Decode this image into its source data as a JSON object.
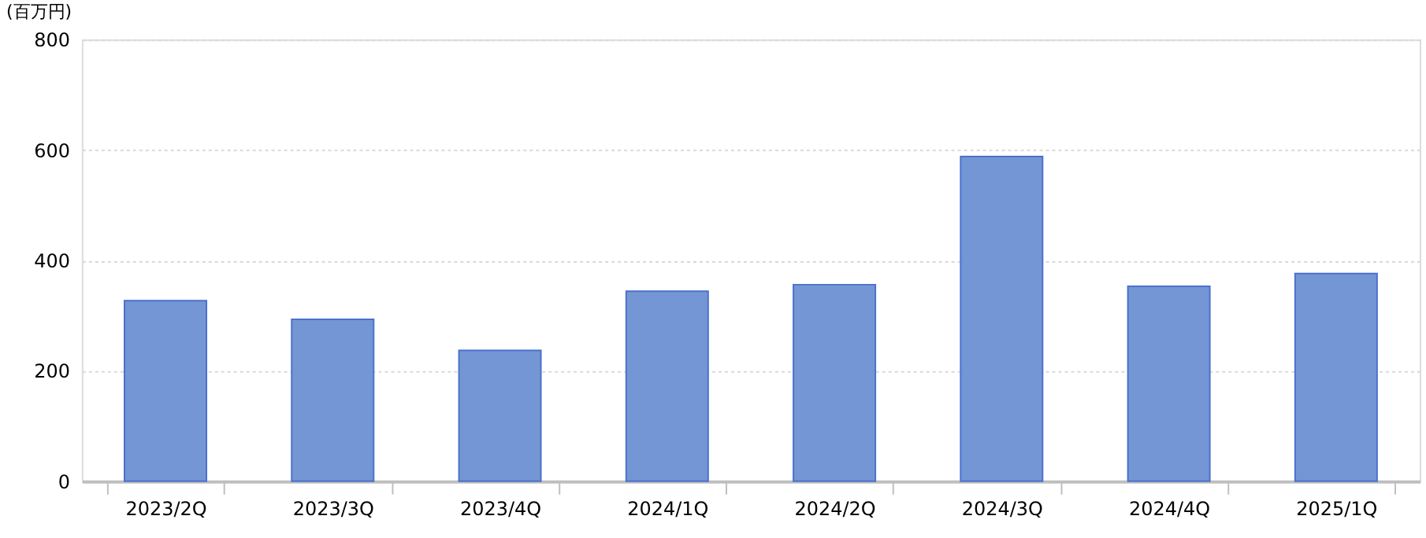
{
  "chart_data": {
    "type": "bar",
    "ylabel": "(百万円)",
    "categories": [
      "2023/2Q",
      "2023/3Q",
      "2023/4Q",
      "2024/1Q",
      "2024/2Q",
      "2024/3Q",
      "2024/4Q",
      "2025/1Q"
    ],
    "values": [
      327,
      293,
      237,
      344,
      356,
      588,
      353,
      376
    ],
    "color": "#7596d4",
    "ylim": [
      0,
      800
    ],
    "yticks": [
      0,
      200,
      400,
      600,
      800
    ],
    "grid": "y"
  }
}
